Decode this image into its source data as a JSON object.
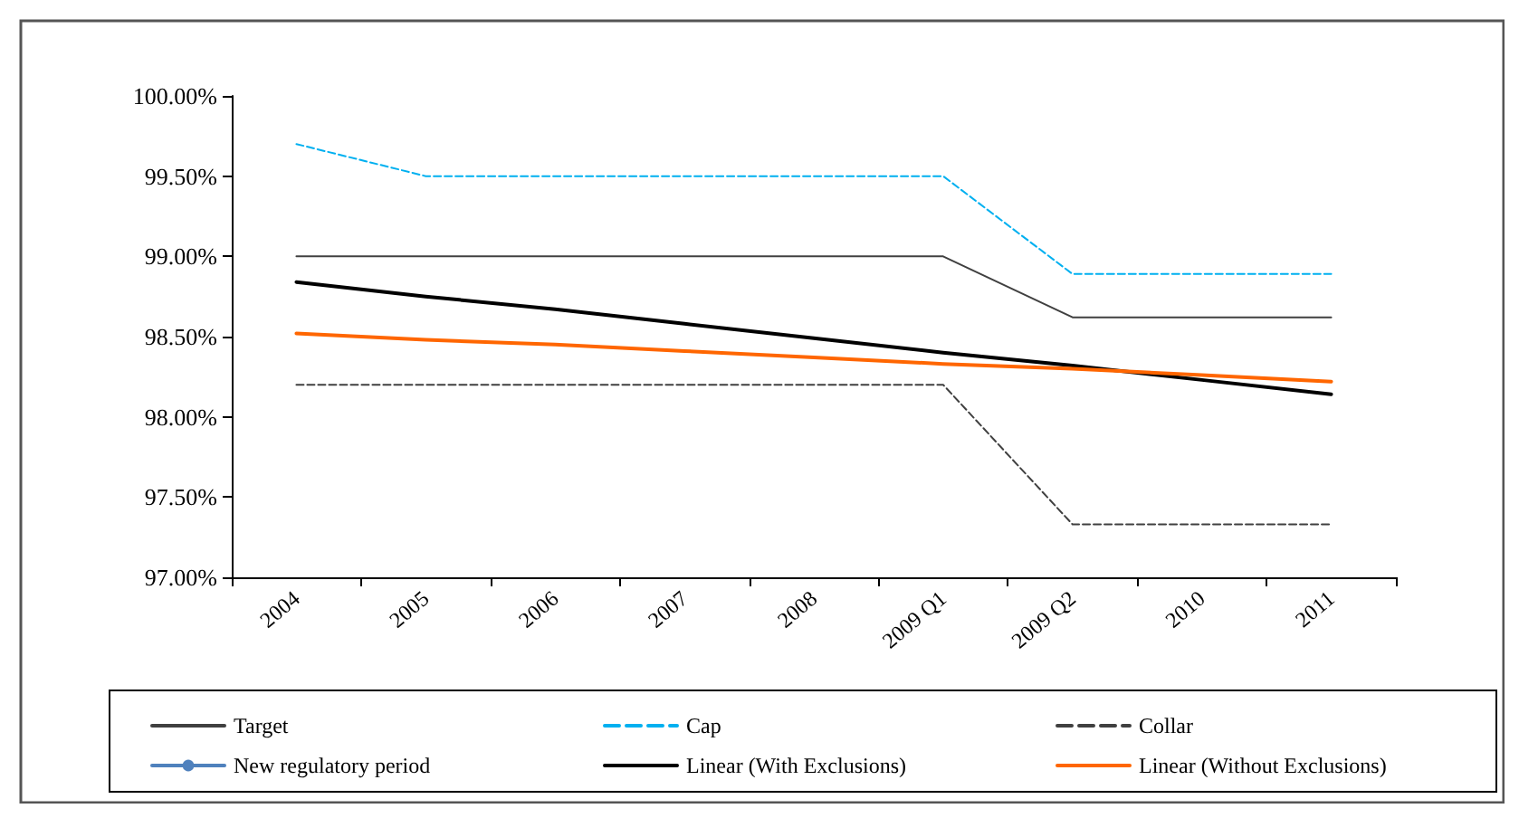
{
  "chart_data": {
    "type": "line",
    "categories": [
      "2004",
      "2005",
      "2006",
      "2007",
      "2008",
      "2009 Q1",
      "2009 Q2",
      "2010",
      "2011"
    ],
    "ylim": [
      97,
      100
    ],
    "yticks": [
      {
        "value": 97,
        "label": "97.00%"
      },
      {
        "value": 97.5,
        "label": "97.50%"
      },
      {
        "value": 98,
        "label": "98.00%"
      },
      {
        "value": 98.5,
        "label": "98.50%"
      },
      {
        "value": 99,
        "label": "99.00%"
      },
      {
        "value": 99.5,
        "label": "99.50%"
      },
      {
        "value": 100,
        "label": "100.00%"
      }
    ],
    "grid": false,
    "legend": "bottom",
    "marker": "none",
    "series": [
      {
        "name": "Target",
        "color": "#404040",
        "line_style": "solid",
        "values": [
          99,
          99,
          99,
          99,
          99,
          99,
          98.62,
          98.62,
          98.62
        ]
      },
      {
        "name": "Cap",
        "color": "#00b0f0",
        "line_style": "dashed",
        "values": [
          99.7,
          99.5,
          99.5,
          99.5,
          99.5,
          99.5,
          98.89,
          98.89,
          98.89
        ]
      },
      {
        "name": "Collar",
        "color": "#404040",
        "line_style": "dashed",
        "values": [
          98.2,
          98.2,
          98.2,
          98.2,
          98.2,
          98.2,
          97.33,
          97.33,
          97.33
        ]
      },
      {
        "name": "New regulatory period",
        "color": "#4f81bd",
        "line_style": "solid",
        "marker": "circle",
        "values": [
          null,
          null,
          null,
          null,
          null,
          null,
          null,
          null,
          null
        ]
      },
      {
        "name": "Linear (With Exclusions)",
        "color": "#000000",
        "line_style": "solid",
        "values": [
          98.84,
          98.75,
          98.67,
          98.58,
          98.49,
          98.4,
          98.32,
          98.23,
          98.14
        ]
      },
      {
        "name": "Linear (Without Exclusions)",
        "color": "#ff6600",
        "line_style": "solid",
        "values": [
          98.52,
          98.48,
          98.45,
          98.41,
          98.37,
          98.33,
          98.3,
          98.26,
          98.22
        ]
      }
    ]
  }
}
